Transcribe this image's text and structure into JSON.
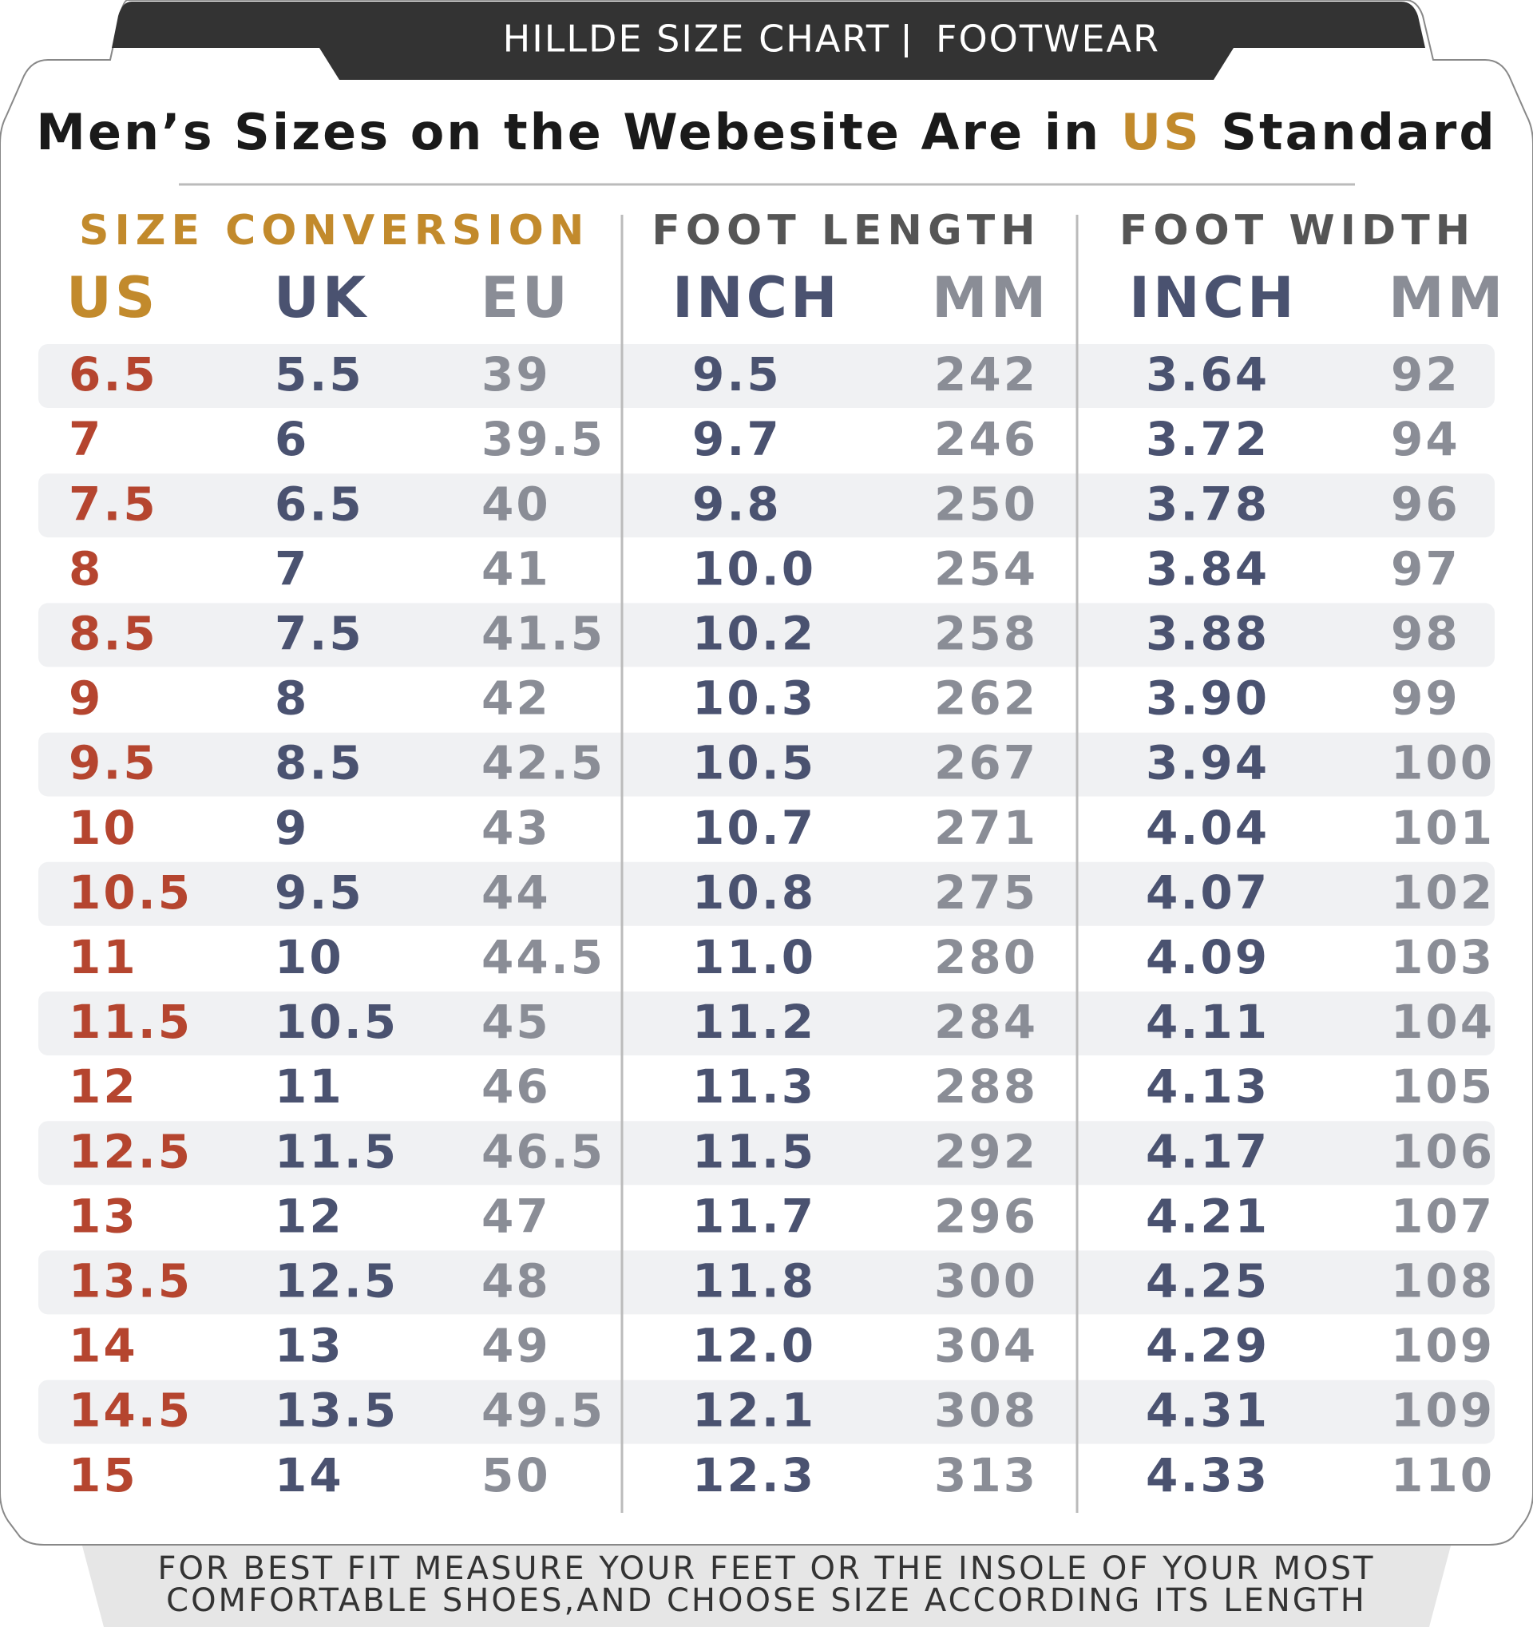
{
  "header": {
    "title": "HILLDE SIZE CHART",
    "category": "FOOTWEAR"
  },
  "subtitle": {
    "before": "Men’s Sizes on the Webesite Are in",
    "highlight": "US",
    "after": "Standard"
  },
  "groups": [
    "SIZE CONVERSION",
    "FOOT LENGTH",
    "FOOT WIDTH"
  ],
  "columns": [
    "US",
    "UK",
    "EU",
    "INCH",
    "MM",
    "INCH",
    "MM"
  ],
  "table": {
    "rows": [
      [
        "6.5",
        "5.5",
        "39",
        "9.5",
        "242",
        "3.64",
        "92"
      ],
      [
        "7",
        "6",
        "39.5",
        "9.7",
        "246",
        "3.72",
        "94"
      ],
      [
        "7.5",
        "6.5",
        "40",
        "9.8",
        "250",
        "3.78",
        "96"
      ],
      [
        "8",
        "7",
        "41",
        "10.0",
        "254",
        "3.84",
        "97"
      ],
      [
        "8.5",
        "7.5",
        "41.5",
        "10.2",
        "258",
        "3.88",
        "98"
      ],
      [
        "9",
        "8",
        "42",
        "10.3",
        "262",
        "3.90",
        "99"
      ],
      [
        "9.5",
        "8.5",
        "42.5",
        "10.5",
        "267",
        "3.94",
        "100"
      ],
      [
        "10",
        "9",
        "43",
        "10.7",
        "271",
        "4.04",
        "101"
      ],
      [
        "10.5",
        "9.5",
        "44",
        "10.8",
        "275",
        "4.07",
        "102"
      ],
      [
        "11",
        "10",
        "44.5",
        "11.0",
        "280",
        "4.09",
        "103"
      ],
      [
        "11.5",
        "10.5",
        "45",
        "11.2",
        "284",
        "4.11",
        "104"
      ],
      [
        "12",
        "11",
        "46",
        "11.3",
        "288",
        "4.13",
        "105"
      ],
      [
        "12.5",
        "11.5",
        "46.5",
        "11.5",
        "292",
        "4.17",
        "106"
      ],
      [
        "13",
        "12",
        "47",
        "11.7",
        "296",
        "4.21",
        "107"
      ],
      [
        "13.5",
        "12.5",
        "48",
        "11.8",
        "300",
        "4.25",
        "108"
      ],
      [
        "14",
        "13",
        "49",
        "12.0",
        "304",
        "4.29",
        "109"
      ],
      [
        "14.5",
        "13.5",
        "49.5",
        "12.1",
        "308",
        "4.31",
        "109"
      ],
      [
        "15",
        "14",
        "50",
        "12.3",
        "313",
        "4.33",
        "110"
      ]
    ]
  },
  "footer": [
    "FOR BEST FIT MEASURE YOUR FEET OR THE INSOLE OF YOUR MOST",
    "COMFORTABLE SHOES,AND CHOOSE SIZE ACCORDING ITS LENGTH"
  ]
}
